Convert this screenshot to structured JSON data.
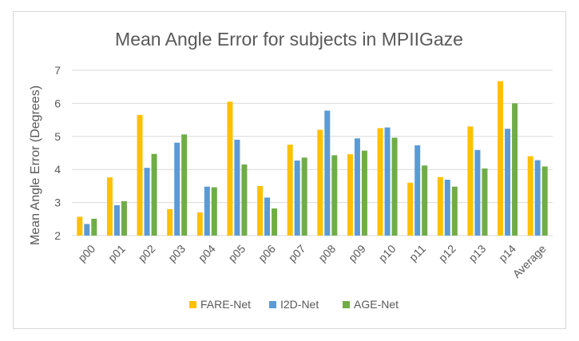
{
  "colors": {
    "FARE-Net": "#ffc000",
    "I2D-Net": "#5b9bd5",
    "AGE-Net": "#70ad47"
  },
  "chart_data": {
    "type": "bar",
    "title": "Mean Angle Error for subjects in MPIIGaze",
    "xlabel": "",
    "ylabel": "Mean Angle Error (Degrees)",
    "ylim": [
      2,
      7
    ],
    "yticks": [
      2,
      3,
      4,
      5,
      6,
      7
    ],
    "grid": true,
    "legend": "bottom",
    "categories": [
      "p00",
      "p01",
      "p02",
      "p03",
      "p04",
      "p05",
      "p06",
      "p07",
      "p08",
      "p09",
      "p10",
      "p11",
      "p12",
      "p13",
      "p14",
      "Average"
    ],
    "series": [
      {
        "name": "FARE-Net",
        "values": [
          2.57,
          3.76,
          5.65,
          2.8,
          2.7,
          6.05,
          3.5,
          4.75,
          5.2,
          4.46,
          5.25,
          3.6,
          3.77,
          5.3,
          6.67,
          4.4
        ]
      },
      {
        "name": "I2D-Net",
        "values": [
          2.35,
          2.92,
          4.05,
          4.81,
          3.48,
          4.9,
          3.15,
          4.27,
          5.78,
          4.94,
          5.27,
          4.73,
          3.69,
          4.59,
          5.23,
          4.28
        ]
      },
      {
        "name": "AGE-Net",
        "values": [
          2.51,
          3.04,
          4.47,
          5.06,
          3.46,
          4.15,
          2.82,
          4.36,
          4.43,
          4.57,
          4.96,
          4.12,
          3.48,
          4.03,
          6.0,
          4.09
        ]
      }
    ]
  }
}
